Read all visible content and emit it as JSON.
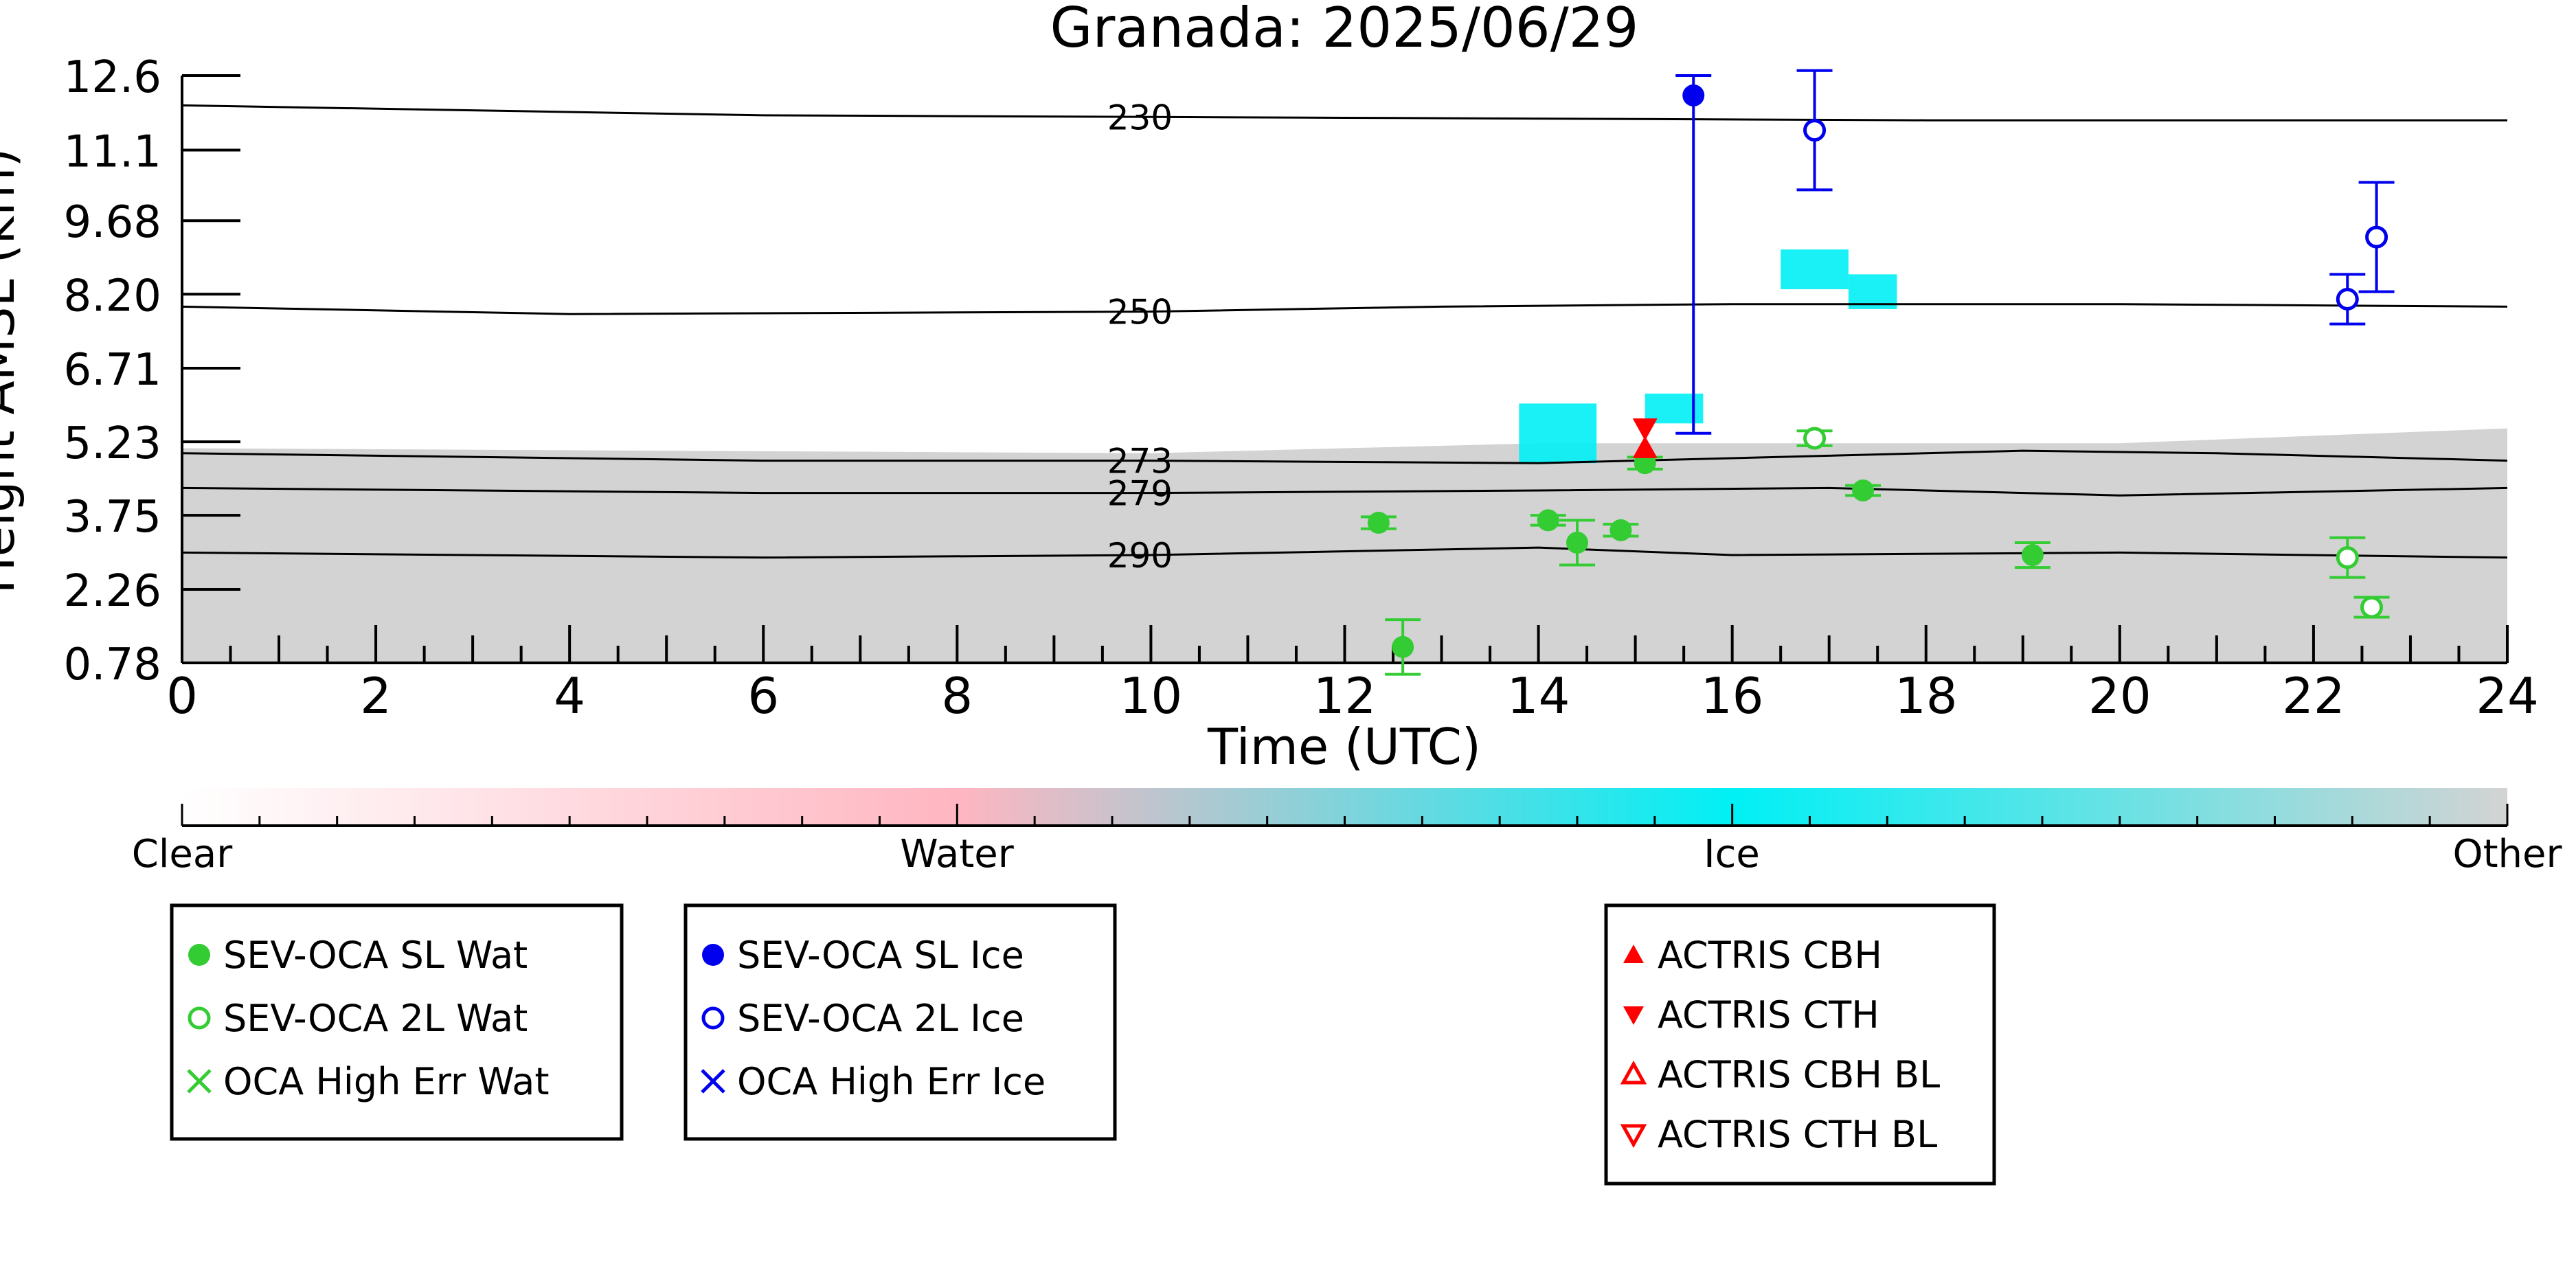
{
  "chart_data": {
    "type": "scatter",
    "title": "Granada: 2025/06/29",
    "xlabel": "Time (UTC)",
    "ylabel": "Height AMSL (km)",
    "xlim": [
      0,
      24
    ],
    "ylim": [
      0.78,
      12.6
    ],
    "x_ticks": [
      "0",
      "2",
      "4",
      "6",
      "8",
      "10",
      "12",
      "14",
      "16",
      "18",
      "20",
      "22",
      "24"
    ],
    "y_ticks": [
      "0.78",
      "2.26",
      "3.75",
      "5.23",
      "6.71",
      "8.20",
      "9.68",
      "11.1",
      "12.6"
    ],
    "isotherm_labels": [
      "230",
      "250",
      "273",
      "279",
      "290"
    ],
    "isotherms": [
      {
        "label": "230",
        "points": [
          [
            0,
            12.0
          ],
          [
            6,
            11.8
          ],
          [
            12,
            11.75
          ],
          [
            18,
            11.7
          ],
          [
            24,
            11.7
          ]
        ]
      },
      {
        "label": "250",
        "points": [
          [
            0,
            7.95
          ],
          [
            4,
            7.8
          ],
          [
            10,
            7.85
          ],
          [
            13,
            7.95
          ],
          [
            16,
            8.0
          ],
          [
            20,
            8.0
          ],
          [
            24,
            7.95
          ]
        ]
      },
      {
        "label": "273",
        "points": [
          [
            0,
            5.0
          ],
          [
            6,
            4.85
          ],
          [
            10,
            4.85
          ],
          [
            14,
            4.8
          ],
          [
            17,
            4.95
          ],
          [
            19,
            5.05
          ],
          [
            21,
            5.0
          ],
          [
            24,
            4.85
          ]
        ]
      },
      {
        "label": "279",
        "points": [
          [
            0,
            4.3
          ],
          [
            6,
            4.2
          ],
          [
            10,
            4.2
          ],
          [
            14,
            4.25
          ],
          [
            17,
            4.3
          ],
          [
            20,
            4.15
          ],
          [
            24,
            4.3
          ]
        ]
      },
      {
        "label": "290",
        "points": [
          [
            0,
            3.0
          ],
          [
            6,
            2.9
          ],
          [
            10,
            2.95
          ],
          [
            14,
            3.1
          ],
          [
            16,
            2.95
          ],
          [
            20,
            3.0
          ],
          [
            24,
            2.9
          ]
        ]
      }
    ],
    "series": [
      {
        "name": "SEV-OCA SL Wat",
        "color": "#33cc33",
        "marker": "filled-circle",
        "points": [
          {
            "x": 12.35,
            "y": 3.6,
            "err": 0.12
          },
          {
            "x": 12.6,
            "y": 1.1,
            "err": 0.55
          },
          {
            "x": 14.1,
            "y": 3.65,
            "err": 0.1
          },
          {
            "x": 14.4,
            "y": 3.2,
            "err": 0.45
          },
          {
            "x": 14.85,
            "y": 3.45,
            "err": 0.12
          },
          {
            "x": 15.1,
            "y": 4.8,
            "err": 0.12
          },
          {
            "x": 17.35,
            "y": 4.25,
            "err": 0.1
          },
          {
            "x": 19.1,
            "y": 2.95,
            "err": 0.25
          }
        ]
      },
      {
        "name": "SEV-OCA 2L Wat",
        "color": "#33cc33",
        "marker": "open-circle",
        "points": [
          {
            "x": 16.85,
            "y": 5.3,
            "err": 0.15
          },
          {
            "x": 22.35,
            "y": 2.9,
            "err": 0.4
          },
          {
            "x": 22.6,
            "y": 1.9,
            "err": 0.2
          }
        ]
      },
      {
        "name": "OCA High Err Wat",
        "color": "#33cc33",
        "marker": "x",
        "points": []
      },
      {
        "name": "SEV-OCA SL Ice",
        "color": "#0000ee",
        "marker": "filled-circle",
        "points": [
          {
            "x": 15.6,
            "y": 12.2,
            "err_low": 6.8,
            "err_high": 0.4
          }
        ]
      },
      {
        "name": "SEV-OCA 2L Ice",
        "color": "#0000ee",
        "marker": "open-circle",
        "points": [
          {
            "x": 16.85,
            "y": 11.5,
            "err": 1.2
          },
          {
            "x": 22.35,
            "y": 8.1,
            "err": 0.5
          },
          {
            "x": 22.65,
            "y": 9.35,
            "err": 1.1
          }
        ]
      },
      {
        "name": "OCA High Err Ice",
        "color": "#0000ee",
        "marker": "x",
        "points": []
      },
      {
        "name": "ACTRIS CBH",
        "color": "#ff0000",
        "marker": "triangle-up",
        "points": [
          {
            "x": 15.1,
            "y": 5.1
          }
        ]
      },
      {
        "name": "ACTRIS CTH",
        "color": "#ff0000",
        "marker": "triangle-down",
        "points": [
          {
            "x": 15.1,
            "y": 5.5
          }
        ]
      },
      {
        "name": "ACTRIS CBH BL",
        "color": "#ff0000",
        "marker": "triangle-up-open",
        "points": []
      },
      {
        "name": "ACTRIS CTH BL",
        "color": "#ff0000",
        "marker": "triangle-down-open",
        "points": []
      }
    ],
    "background": {
      "other_color": "#d3d3d3",
      "ice_color": "#00f0f5",
      "water_color": "#ffb6c1",
      "other_layer": [
        [
          0,
          5.1
        ],
        [
          5,
          5.05
        ],
        [
          10,
          5.0
        ],
        [
          12,
          5.1
        ],
        [
          14,
          5.2
        ],
        [
          18,
          5.2
        ],
        [
          20,
          5.2
        ],
        [
          24,
          5.5
        ]
      ],
      "ice_patches": [
        {
          "x0": 13.8,
          "x1": 14.6,
          "y0": 4.8,
          "y1": 6.0
        },
        {
          "x0": 15.1,
          "x1": 15.7,
          "y0": 5.6,
          "y1": 6.2
        },
        {
          "x0": 16.5,
          "x1": 17.2,
          "y0": 8.3,
          "y1": 9.1
        },
        {
          "x0": 17.2,
          "x1": 17.7,
          "y0": 7.9,
          "y1": 8.6
        }
      ]
    },
    "colorbar": {
      "labels": [
        "Clear",
        "Water",
        "Ice",
        "Other"
      ],
      "colors": [
        "#ffffff",
        "#ffb6c1",
        "#00f0f5",
        "#d3d3d3"
      ]
    },
    "legend_groups": [
      [
        "SEV-OCA SL Wat",
        "SEV-OCA 2L Wat",
        "OCA High Err Wat"
      ],
      [
        "SEV-OCA SL Ice",
        "SEV-OCA 2L Ice",
        "OCA High Err Ice"
      ],
      [
        "ACTRIS CBH",
        "ACTRIS CTH",
        "ACTRIS CBH BL",
        "ACTRIS CTH BL"
      ]
    ],
    "grid": false,
    "legend_placement": "bottom"
  }
}
